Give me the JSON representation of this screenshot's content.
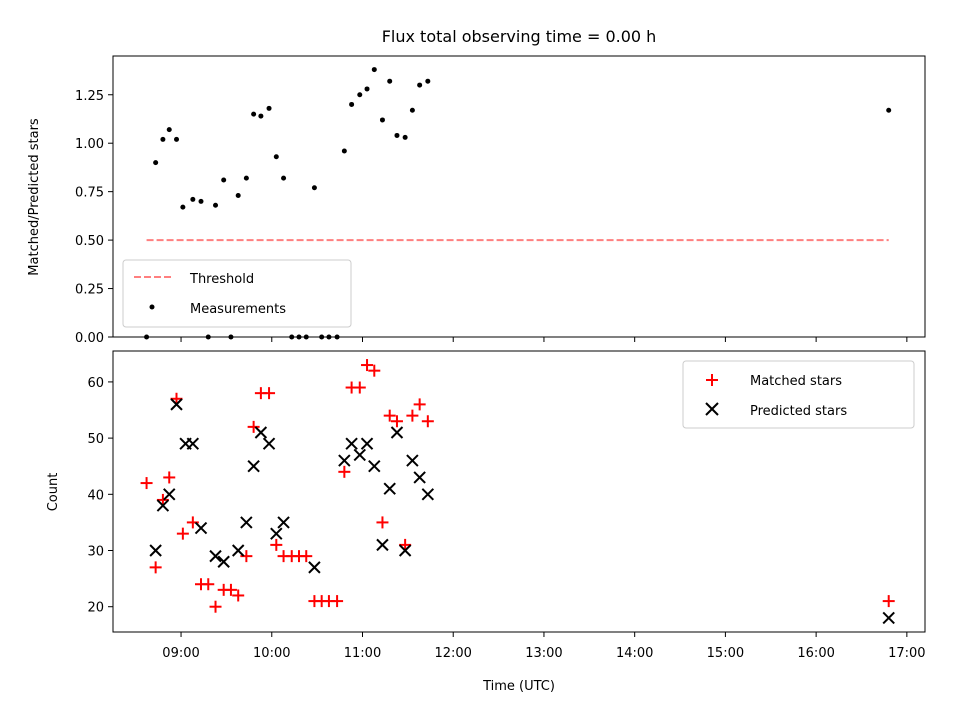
{
  "chart_data": {
    "title": "Flux total observing time = 0.00 h",
    "xlabel": "Time (UTC)",
    "x_unit": "hours UTC",
    "xlim": [
      8.25,
      17.2
    ],
    "x_ticks": [
      {
        "value": 9,
        "label": "09:00"
      },
      {
        "value": 10,
        "label": "10:00"
      },
      {
        "value": 11,
        "label": "11:00"
      },
      {
        "value": 12,
        "label": "12:00"
      },
      {
        "value": 13,
        "label": "13:00"
      },
      {
        "value": 14,
        "label": "14:00"
      },
      {
        "value": 15,
        "label": "15:00"
      },
      {
        "value": 16,
        "label": "16:00"
      },
      {
        "value": 17,
        "label": "17:00"
      }
    ],
    "panels": [
      {
        "id": "ratio",
        "type": "scatter",
        "ylabel": "Matched/Predicted stars",
        "ylim": [
          0,
          1.45
        ],
        "y_ticks": [
          {
            "value": 0,
            "label": "0.00"
          },
          {
            "value": 0.25,
            "label": "0.25"
          },
          {
            "value": 0.5,
            "label": "0.50"
          },
          {
            "value": 0.75,
            "label": "0.75"
          },
          {
            "value": 1.0,
            "label": "1.00"
          },
          {
            "value": 1.25,
            "label": "1.25"
          }
        ],
        "legend_position": "lower-left",
        "lines": [
          {
            "name": "Threshold",
            "color": "#ff7f7f",
            "dashed": true,
            "x": [
              8.62,
              16.8
            ],
            "y": [
              0.5,
              0.5
            ]
          }
        ],
        "series": [
          {
            "name": "Measurements",
            "marker": "dot",
            "color": "#000000",
            "points": [
              [
                8.62,
                0.0
              ],
              [
                8.72,
                0.9
              ],
              [
                8.8,
                1.02
              ],
              [
                8.87,
                1.07
              ],
              [
                8.95,
                1.02
              ],
              [
                9.02,
                0.67
              ],
              [
                9.13,
                0.71
              ],
              [
                9.22,
                0.7
              ],
              [
                9.3,
                0.0
              ],
              [
                9.38,
                0.68
              ],
              [
                9.47,
                0.81
              ],
              [
                9.55,
                0.0
              ],
              [
                9.63,
                0.73
              ],
              [
                9.72,
                0.82
              ],
              [
                9.8,
                1.15
              ],
              [
                9.88,
                1.14
              ],
              [
                9.97,
                1.18
              ],
              [
                10.05,
                0.93
              ],
              [
                10.13,
                0.82
              ],
              [
                10.22,
                0.0
              ],
              [
                10.3,
                0.0
              ],
              [
                10.38,
                0.0
              ],
              [
                10.47,
                0.77
              ],
              [
                10.55,
                0.0
              ],
              [
                10.63,
                0.0
              ],
              [
                10.72,
                0.0
              ],
              [
                10.8,
                0.96
              ],
              [
                10.88,
                1.2
              ],
              [
                10.97,
                1.25
              ],
              [
                11.05,
                1.28
              ],
              [
                11.13,
                1.38
              ],
              [
                11.22,
                1.12
              ],
              [
                11.3,
                1.32
              ],
              [
                11.38,
                1.04
              ],
              [
                11.47,
                1.03
              ],
              [
                11.55,
                1.17
              ],
              [
                11.63,
                1.3
              ],
              [
                11.72,
                1.32
              ],
              [
                16.8,
                1.17
              ]
            ]
          }
        ]
      },
      {
        "id": "counts",
        "type": "scatter",
        "ylabel": "Count",
        "ylim": [
          15.5,
          65.5
        ],
        "y_ticks": [
          {
            "value": 20,
            "label": "20"
          },
          {
            "value": 30,
            "label": "30"
          },
          {
            "value": 40,
            "label": "40"
          },
          {
            "value": 50,
            "label": "50"
          },
          {
            "value": 60,
            "label": "60"
          }
        ],
        "legend_position": "upper-right",
        "series": [
          {
            "name": "Matched stars",
            "marker": "plus",
            "color": "#ff0000",
            "points": [
              [
                8.62,
                42
              ],
              [
                8.72,
                27
              ],
              [
                8.8,
                39
              ],
              [
                8.87,
                43
              ],
              [
                8.95,
                57
              ],
              [
                9.02,
                33
              ],
              [
                9.13,
                35
              ],
              [
                9.22,
                24
              ],
              [
                9.3,
                24
              ],
              [
                9.38,
                20
              ],
              [
                9.47,
                23
              ],
              [
                9.55,
                23
              ],
              [
                9.63,
                22
              ],
              [
                9.72,
                29
              ],
              [
                9.8,
                52
              ],
              [
                9.88,
                58
              ],
              [
                9.97,
                58
              ],
              [
                10.05,
                31
              ],
              [
                10.13,
                29
              ],
              [
                10.22,
                29
              ],
              [
                10.3,
                29
              ],
              [
                10.38,
                29
              ],
              [
                10.47,
                21
              ],
              [
                10.55,
                21
              ],
              [
                10.63,
                21
              ],
              [
                10.72,
                21
              ],
              [
                10.8,
                44
              ],
              [
                10.88,
                59
              ],
              [
                10.97,
                59
              ],
              [
                11.05,
                63
              ],
              [
                11.13,
                62
              ],
              [
                11.22,
                35
              ],
              [
                11.3,
                54
              ],
              [
                11.38,
                53
              ],
              [
                11.47,
                31
              ],
              [
                11.55,
                54
              ],
              [
                11.63,
                56
              ],
              [
                11.72,
                53
              ],
              [
                16.8,
                21
              ]
            ]
          },
          {
            "name": "Predicted stars",
            "marker": "x",
            "color": "#000000",
            "points": [
              [
                8.72,
                30
              ],
              [
                8.8,
                38
              ],
              [
                8.87,
                40
              ],
              [
                8.95,
                56
              ],
              [
                9.05,
                49
              ],
              [
                9.13,
                49
              ],
              [
                9.22,
                34
              ],
              [
                9.38,
                29
              ],
              [
                9.47,
                28
              ],
              [
                9.63,
                30
              ],
              [
                9.72,
                35
              ],
              [
                9.8,
                45
              ],
              [
                9.88,
                51
              ],
              [
                9.97,
                49
              ],
              [
                10.05,
                33
              ],
              [
                10.13,
                35
              ],
              [
                10.47,
                27
              ],
              [
                10.8,
                46
              ],
              [
                10.88,
                49
              ],
              [
                10.97,
                47
              ],
              [
                11.05,
                49
              ],
              [
                11.13,
                45
              ],
              [
                11.22,
                31
              ],
              [
                11.3,
                41
              ],
              [
                11.38,
                51
              ],
              [
                11.47,
                30
              ],
              [
                11.55,
                46
              ],
              [
                11.63,
                43
              ],
              [
                11.72,
                40
              ],
              [
                16.8,
                18
              ]
            ]
          }
        ]
      }
    ]
  }
}
